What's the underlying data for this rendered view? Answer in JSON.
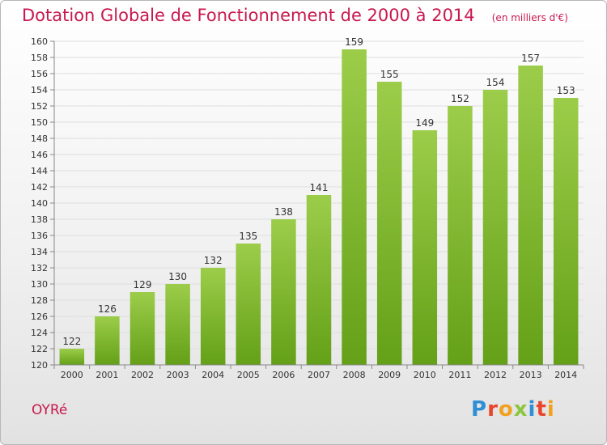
{
  "header": {
    "title": "Dotation Globale de Fonctionnement de 2000 à 2014",
    "unit": "(en milliers d'€)"
  },
  "footer": {
    "commune": "OYRé",
    "brand": "Proxiti"
  },
  "colors": {
    "title": "#c8184f",
    "bar_light": "#9ccd4a",
    "bar_dark": "#64a018"
  },
  "chart_data": {
    "type": "bar",
    "categories": [
      "2000",
      "2001",
      "2002",
      "2003",
      "2004",
      "2005",
      "2006",
      "2007",
      "2008",
      "2009",
      "2010",
      "2011",
      "2012",
      "2013",
      "2014"
    ],
    "values": [
      122,
      126,
      129,
      130,
      132,
      135,
      138,
      141,
      159,
      155,
      149,
      152,
      154,
      157,
      153
    ],
    "ylim": [
      120,
      160
    ],
    "ytick_step": 2,
    "grid": true,
    "data_labels": true,
    "title": "Dotation Globale de Fonctionnement de 2000 à 2014",
    "xlabel": "",
    "ylabel": ""
  }
}
